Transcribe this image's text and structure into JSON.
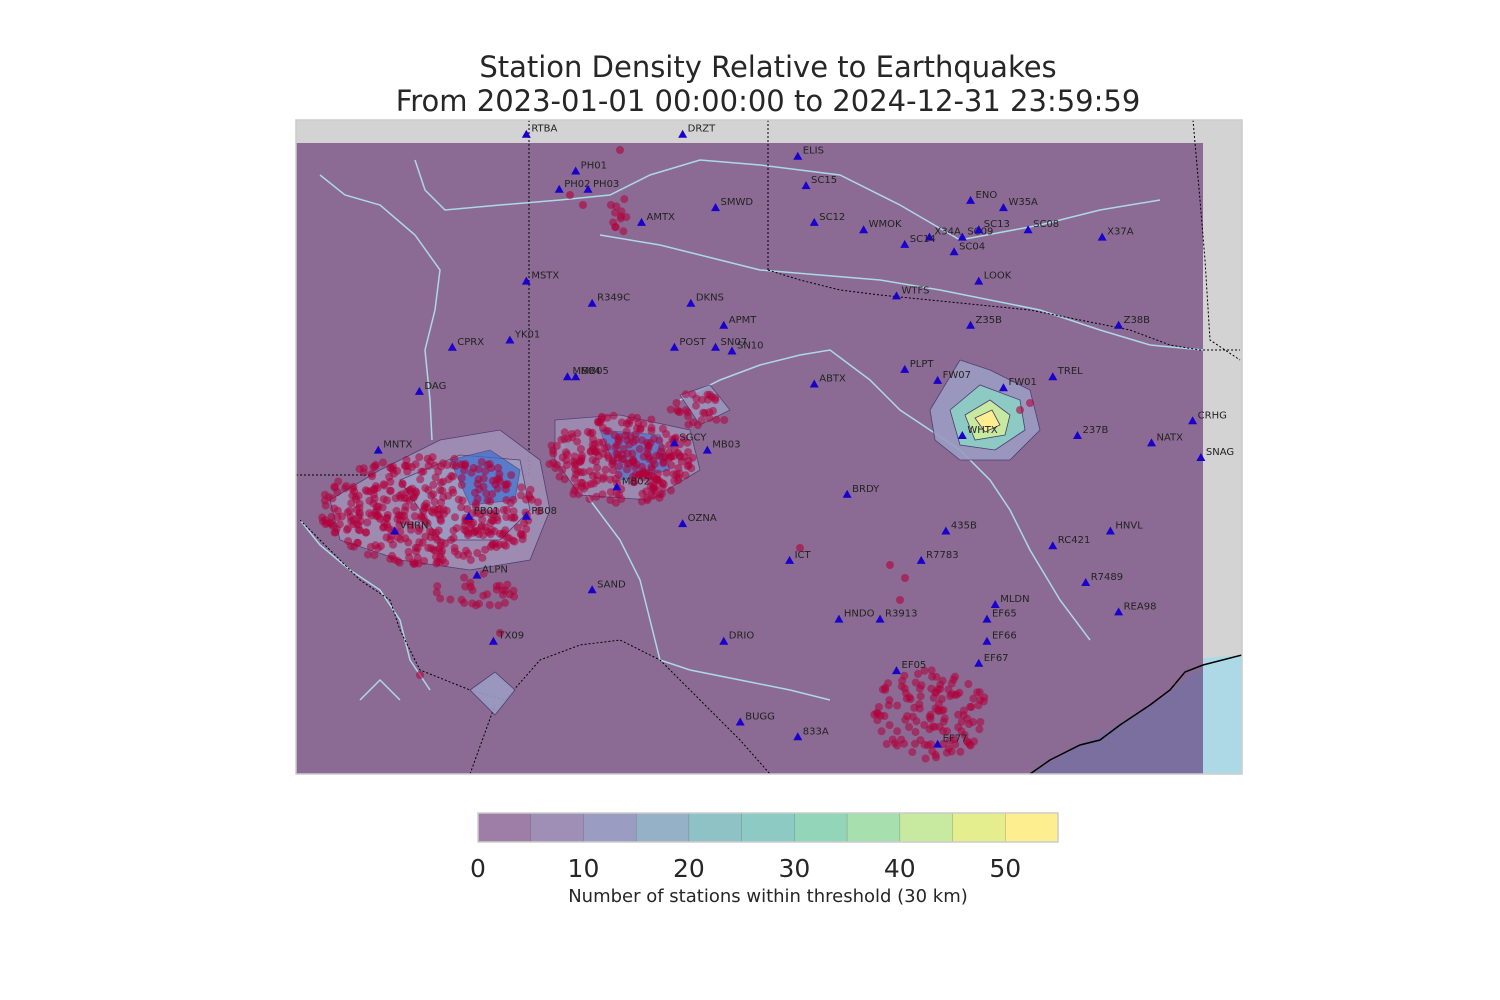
{
  "title": {
    "line1": "Station Density Relative to Earthquakes",
    "line2": "From 2023-01-01 00:00:00 to 2024-12-31 23:59:59"
  },
  "map": {
    "region": "West / Central Texas, southeastern New Mexico, southern Oklahoma",
    "colors": {
      "land_fill": "#8b6b94",
      "outside_extent": "#d3d3d3",
      "water": "#add8e6",
      "rivers": "#add8e6",
      "borders": "#000000",
      "earthquake": "#b0003a",
      "station": "#1a00cc"
    },
    "earthquake_marker": "circle",
    "station_marker": "triangle",
    "stations": [
      {
        "code": "RTBA",
        "lon": -103.2,
        "lat": 37.2
      },
      {
        "code": "DRZT",
        "lon": -101.3,
        "lat": 37.2
      },
      {
        "code": "ELIS",
        "lon": -99.9,
        "lat": 36.9
      },
      {
        "code": "SC15",
        "lon": -99.8,
        "lat": 36.5
      },
      {
        "code": "PH01",
        "lon": -102.6,
        "lat": 36.7
      },
      {
        "code": "PH02",
        "lon": -102.8,
        "lat": 36.45
      },
      {
        "code": "PH03",
        "lon": -102.45,
        "lat": 36.45
      },
      {
        "code": "SMWD",
        "lon": -100.9,
        "lat": 36.2
      },
      {
        "code": "AMTX",
        "lon": -101.8,
        "lat": 36.0
      },
      {
        "code": "SC12",
        "lon": -99.7,
        "lat": 36.0
      },
      {
        "code": "WMOK",
        "lon": -99.1,
        "lat": 35.9
      },
      {
        "code": "ENO",
        "lon": -97.8,
        "lat": 36.3
      },
      {
        "code": "W35A",
        "lon": -97.4,
        "lat": 36.2
      },
      {
        "code": "X34A",
        "lon": -98.3,
        "lat": 35.8
      },
      {
        "code": "SC09",
        "lon": -97.9,
        "lat": 35.8
      },
      {
        "code": "SC13",
        "lon": -97.7,
        "lat": 35.9
      },
      {
        "code": "SC08",
        "lon": -97.1,
        "lat": 35.9
      },
      {
        "code": "X37A",
        "lon": -96.2,
        "lat": 35.8
      },
      {
        "code": "SC14",
        "lon": -98.6,
        "lat": 35.7
      },
      {
        "code": "SC04",
        "lon": -98.0,
        "lat": 35.6
      },
      {
        "code": "MSTX",
        "lon": -103.2,
        "lat": 35.2
      },
      {
        "code": "LOOK",
        "lon": -97.7,
        "lat": 35.2
      },
      {
        "code": "WTFS",
        "lon": -98.7,
        "lat": 35.0
      },
      {
        "code": "R349C",
        "lon": -102.4,
        "lat": 34.9
      },
      {
        "code": "DKNS",
        "lon": -101.2,
        "lat": 34.9
      },
      {
        "code": "APMT",
        "lon": -100.8,
        "lat": 34.6
      },
      {
        "code": "Z35B",
        "lon": -97.8,
        "lat": 34.6
      },
      {
        "code": "Z38B",
        "lon": -96.0,
        "lat": 34.6
      },
      {
        "code": "CPRX",
        "lon": -104.1,
        "lat": 34.3
      },
      {
        "code": "YK01",
        "lon": -103.4,
        "lat": 34.4
      },
      {
        "code": "POST",
        "lon": -101.4,
        "lat": 34.3
      },
      {
        "code": "SN07",
        "lon": -100.9,
        "lat": 34.3
      },
      {
        "code": "SN10",
        "lon": -100.7,
        "lat": 34.25
      },
      {
        "code": "MB04",
        "lon": -102.7,
        "lat": 33.9
      },
      {
        "code": "MB05",
        "lon": -102.6,
        "lat": 33.9
      },
      {
        "code": "PLPT",
        "lon": -98.6,
        "lat": 34.0
      },
      {
        "code": "FW07",
        "lon": -98.2,
        "lat": 33.85
      },
      {
        "code": "FW01",
        "lon": -97.4,
        "lat": 33.75
      },
      {
        "code": "TREL",
        "lon": -96.8,
        "lat": 33.9
      },
      {
        "code": "ABTX",
        "lon": -99.7,
        "lat": 33.8
      },
      {
        "code": "DAG",
        "lon": -104.5,
        "lat": 33.7
      },
      {
        "code": "CRHG",
        "lon": -95.1,
        "lat": 33.3
      },
      {
        "code": "WHTX",
        "lon": -97.9,
        "lat": 33.1
      },
      {
        "code": "237B",
        "lon": -96.5,
        "lat": 33.1
      },
      {
        "code": "NATX",
        "lon": -95.6,
        "lat": 33.0
      },
      {
        "code": "SNAG",
        "lon": -95.0,
        "lat": 32.8
      },
      {
        "code": "MNTX",
        "lon": -105.0,
        "lat": 32.9
      },
      {
        "code": "MB03",
        "lon": -101.0,
        "lat": 32.9
      },
      {
        "code": "SGCY",
        "lon": -101.4,
        "lat": 33.0
      },
      {
        "code": "MB02",
        "lon": -102.1,
        "lat": 32.4
      },
      {
        "code": "BRDY",
        "lon": -99.3,
        "lat": 32.3
      },
      {
        "code": "PB01",
        "lon": -103.9,
        "lat": 32.0
      },
      {
        "code": "PB08",
        "lon": -103.2,
        "lat": 32.0
      },
      {
        "code": "VHRN",
        "lon": -104.8,
        "lat": 31.8
      },
      {
        "code": "OZNA",
        "lon": -101.3,
        "lat": 31.9
      },
      {
        "code": "435B",
        "lon": -98.1,
        "lat": 31.8
      },
      {
        "code": "HNVL",
        "lon": -96.1,
        "lat": 31.8
      },
      {
        "code": "ALPN",
        "lon": -103.8,
        "lat": 31.2
      },
      {
        "code": "ICT",
        "lon": -100.0,
        "lat": 31.4
      },
      {
        "code": "R7783",
        "lon": -98.4,
        "lat": 31.4
      },
      {
        "code": "RC421",
        "lon": -96.8,
        "lat": 31.6
      },
      {
        "code": "R7489",
        "lon": -96.4,
        "lat": 31.1
      },
      {
        "code": "SAND",
        "lon": -102.4,
        "lat": 31.0
      },
      {
        "code": "MLDN",
        "lon": -97.5,
        "lat": 30.8
      },
      {
        "code": "HNDO",
        "lon": -99.4,
        "lat": 30.6
      },
      {
        "code": "R3913",
        "lon": -98.9,
        "lat": 30.6
      },
      {
        "code": "EF65",
        "lon": -97.6,
        "lat": 30.6
      },
      {
        "code": "EF66",
        "lon": -97.6,
        "lat": 30.3
      },
      {
        "code": "EF67",
        "lon": -97.7,
        "lat": 30.0
      },
      {
        "code": "DRIO",
        "lon": -100.8,
        "lat": 30.3
      },
      {
        "code": "TX09",
        "lon": -103.6,
        "lat": 30.3
      },
      {
        "code": "EF05",
        "lon": -98.7,
        "lat": 29.9
      },
      {
        "code": "833A",
        "lon": -99.9,
        "lat": 29.0
      },
      {
        "code": "EF77",
        "lon": -98.2,
        "lat": 28.9
      },
      {
        "code": "BUGG",
        "lon": -100.6,
        "lat": 29.2
      },
      {
        "code": "REA98",
        "lon": -96.0,
        "lat": 30.7
      }
    ]
  },
  "colorbar": {
    "label": "Number of stations within threshold (30 km)",
    "ticks": [
      "0",
      "10",
      "20",
      "30",
      "40",
      "50"
    ],
    "min": 0,
    "max": 55,
    "step": 5,
    "colors": [
      "#9e7da7",
      "#9f8fb6",
      "#9b9cc2",
      "#94b1c8",
      "#8fc2c4",
      "#8dcac4",
      "#93d5b8",
      "#a8dfae",
      "#c7e9a0",
      "#e5ee8e",
      "#fdee90"
    ]
  }
}
